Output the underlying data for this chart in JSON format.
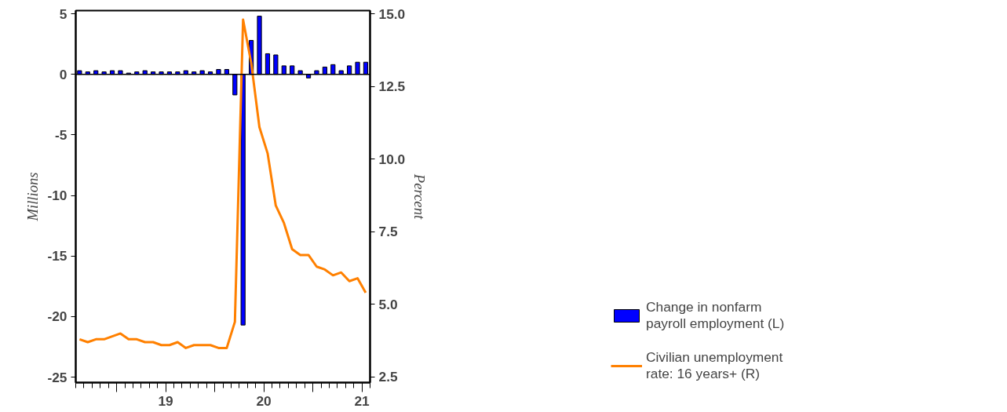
{
  "chart_data": {
    "type": "bar",
    "ylabel": "Millions",
    "y2label": "Percent",
    "x": [
      "2018-08-15",
      "2018-09-15",
      "2018-10-15",
      "2018-11-15",
      "2018-12-15",
      "2019-01-15",
      "2019-02-15",
      "2019-03-15",
      "2019-04-15",
      "2019-05-15",
      "2019-06-15",
      "2019-07-15",
      "2019-08-15",
      "2019-09-15",
      "2019-10-15",
      "2019-11-15",
      "2019-12-15",
      "2020-01-15",
      "2020-02-15",
      "2020-03-15",
      "2020-04-15",
      "2020-05-15",
      "2020-06-15",
      "2020-07-15",
      "2020-08-15",
      "2020-09-15",
      "2020-10-15",
      "2020-11-15",
      "2020-12-15",
      "2021-01-15",
      "2021-02-15",
      "2021-03-15",
      "2021-04-15",
      "2021-05-15",
      "2021-06-15",
      "2021-07-15"
    ],
    "series": [
      {
        "name": "Change in nonfarm payroll employment (L)",
        "color": "#0000ff",
        "values": [
          0.3,
          0.2,
          0.3,
          0.2,
          0.3,
          0.3,
          0.1,
          0.2,
          0.3,
          0.2,
          0.2,
          0.2,
          0.2,
          0.3,
          0.2,
          0.3,
          0.2,
          0.4,
          0.4,
          -1.7,
          -20.7,
          2.8,
          4.8,
          1.7,
          1.6,
          0.7,
          0.7,
          0.3,
          -0.3,
          0.3,
          0.6,
          0.8,
          0.3,
          0.7,
          1.0,
          1.0
        ]
      },
      {
        "name": "Civilian unemployment rate: 16 years+ (R)",
        "color": "#ff8000",
        "type": "line",
        "axis": "y2",
        "values": [
          3.8,
          3.7,
          3.8,
          3.8,
          3.9,
          4.0,
          3.8,
          3.8,
          3.7,
          3.7,
          3.6,
          3.6,
          3.7,
          3.5,
          3.6,
          3.6,
          3.6,
          3.5,
          3.5,
          4.4,
          14.8,
          13.3,
          11.1,
          10.2,
          8.4,
          7.8,
          6.9,
          6.7,
          6.7,
          6.3,
          6.2,
          6.0,
          6.1,
          5.8,
          5.9,
          5.4
        ]
      }
    ],
    "xlim": [
      "2018-08-01",
      "2021-08-01"
    ],
    "xticks": [
      {
        "value": "2019-01-01",
        "label": null
      },
      {
        "value": "2019-07-01",
        "label": "19"
      },
      {
        "value": "2020-01-01",
        "label": null
      },
      {
        "value": "2020-07-01",
        "label": "20"
      },
      {
        "value": "2021-01-01",
        "label": null
      },
      {
        "value": "2021-07-01",
        "label": "21"
      }
    ],
    "ylim": [
      -25.45,
      5.26
    ],
    "yticks": [
      -25,
      -20,
      -15,
      -10,
      -5,
      0,
      5
    ],
    "y2lim": [
      2.31,
      15.11
    ],
    "y2ticks": [
      {
        "value": 2.5,
        "label": "2.5"
      },
      {
        "value": 5,
        "label": "5.0"
      },
      {
        "value": 7.5,
        "label": "7.5"
      },
      {
        "value": 10,
        "label": "10.0"
      },
      {
        "value": 12.5,
        "label": "12.5"
      },
      {
        "value": 15,
        "label": "15.0"
      }
    ],
    "ref_lines": [
      {
        "axis": "y",
        "value": 0,
        "label": null
      }
    ],
    "grid": false,
    "legend": "right"
  }
}
